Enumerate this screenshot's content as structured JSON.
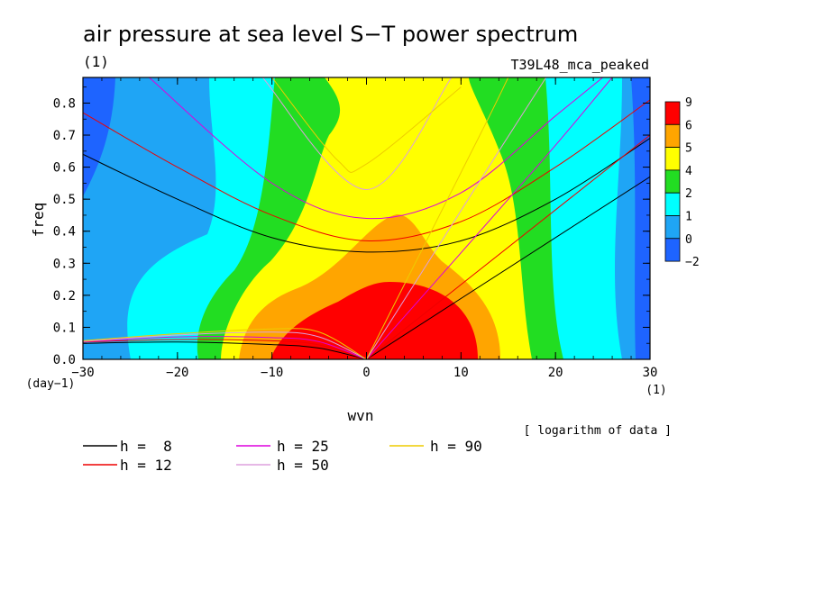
{
  "chart_data": {
    "type": "heatmap",
    "title": "air pressure at sea level S−T power spectrum",
    "units": "(1)",
    "experiment": "T39L48_mca_peaked",
    "xlabel": "wvn",
    "ylabel": "freq",
    "y_units": "(day−1)",
    "x_units": "(1)",
    "xlim": [
      -30,
      30
    ],
    "ylim": [
      0,
      0.88
    ],
    "xticks": [
      "−30",
      "−20",
      "−10",
      "0",
      "10",
      "20",
      "30"
    ],
    "yticks": [
      "0.0",
      "0.1",
      "0.2",
      "0.3",
      "0.4",
      "0.5",
      "0.6",
      "0.7",
      "0.8"
    ],
    "note": "[ logarithm of data ]",
    "colorbar": {
      "levels": [
        "9",
        "6",
        "5",
        "4",
        "2",
        "1",
        "0",
        "−2"
      ],
      "colors": [
        "#ff0000",
        "#ffa500",
        "#ffff00",
        "#22dd22",
        "#00ffff",
        "#1fa5f5",
        "#1e64ff"
      ]
    },
    "field_regions": [
      {
        "level": "−2 to 0",
        "color": "#1e64ff",
        "x": [
          -30,
          -27
        ],
        "y": [
          0.5,
          0.88
        ]
      },
      {
        "level": "0 to 1",
        "color": "#1fa5f5",
        "x": [
          -30,
          -16
        ],
        "y": [
          0,
          0.88
        ]
      },
      {
        "level": "1 to 2",
        "color": "#00ffff",
        "x": [
          -25,
          -10
        ],
        "y": [
          0,
          0.88
        ]
      },
      {
        "level": "2 to 4",
        "color": "#22dd22",
        "x": [
          -18,
          20
        ],
        "y": [
          0,
          0.88
        ]
      },
      {
        "level": "4 to 5",
        "color": "#ffff00",
        "x": [
          -15,
          17
        ],
        "y": [
          0,
          0.88
        ]
      },
      {
        "level": "5 to 6",
        "color": "#ffa500",
        "x": [
          -12,
          14
        ],
        "y": [
          0,
          0.46
        ]
      },
      {
        "level": "6 to 9",
        "color": "#ff0000",
        "x": [
          -9,
          12
        ],
        "y": [
          0,
          0.25
        ]
      }
    ],
    "legend": [
      {
        "label": "h =  8",
        "color": "#000000"
      },
      {
        "label": "h = 12",
        "color": "#ee0000"
      },
      {
        "label": "h = 25",
        "color": "#dd00dd"
      },
      {
        "label": "h = 50",
        "color": "#dda0dd"
      },
      {
        "label": "h = 90",
        "color": "#eecc00"
      }
    ],
    "dispersion_curves": [
      {
        "h": 8,
        "color": "#000000",
        "kelvin": [
          [
            0,
            0
          ],
          [
            30,
            0.57
          ]
        ],
        "rossby": [
          [
            -30,
            0.05
          ],
          [
            -20,
            0.054
          ],
          [
            -10,
            0.046
          ],
          [
            -5,
            0.035
          ],
          [
            0,
            0
          ]
        ],
        "gravity": [
          [
            -30,
            0.64
          ],
          [
            -20,
            0.5
          ],
          [
            -10,
            0.38
          ],
          [
            0,
            0.335
          ],
          [
            10,
            0.37
          ],
          [
            20,
            0.5
          ],
          [
            30,
            0.69
          ]
        ]
      },
      {
        "h": 12,
        "color": "#ee0000",
        "kelvin": [
          [
            0,
            0
          ],
          [
            30,
            0.7
          ]
        ],
        "rossby": [
          [
            -30,
            0.054
          ],
          [
            -20,
            0.062
          ],
          [
            -10,
            0.058
          ],
          [
            -5,
            0.045
          ],
          [
            0,
            0
          ]
        ],
        "gravity": [
          [
            -30,
            0.77
          ],
          [
            -20,
            0.6
          ],
          [
            -10,
            0.45
          ],
          [
            0,
            0.37
          ],
          [
            10,
            0.43
          ],
          [
            20,
            0.6
          ],
          [
            30,
            0.81
          ]
        ]
      },
      {
        "h": 25,
        "color": "#dd00dd",
        "kelvin": [
          [
            0,
            0
          ],
          [
            18,
            0.6
          ],
          [
            26,
            0.88
          ]
        ],
        "rossby": [
          [
            -30,
            0.055
          ],
          [
            -20,
            0.07
          ],
          [
            -10,
            0.068
          ],
          [
            -5,
            0.055
          ],
          [
            0,
            0
          ]
        ],
        "gravity": [
          [
            -23,
            0.88
          ],
          [
            -10,
            0.55
          ],
          [
            0,
            0.44
          ],
          [
            10,
            0.52
          ],
          [
            20,
            0.76
          ],
          [
            25,
            0.88
          ]
        ]
      },
      {
        "h": 50,
        "color": "#dda0dd",
        "kelvin": [
          [
            0,
            0
          ],
          [
            14,
            0.65
          ],
          [
            19,
            0.88
          ]
        ],
        "rossby": [
          [
            -30,
            0.056
          ],
          [
            -20,
            0.076
          ],
          [
            -10,
            0.085
          ],
          [
            -5,
            0.07
          ],
          [
            0,
            0
          ]
        ],
        "gravity": [
          [
            -11,
            0.88
          ],
          [
            0,
            0.53
          ],
          [
            9,
            0.88
          ]
        ]
      },
      {
        "h": 90,
        "color": "#eecc00",
        "kelvin": [
          [
            0,
            0
          ],
          [
            12,
            0.7
          ],
          [
            15,
            0.88
          ]
        ],
        "rossby": [
          [
            -30,
            0.058
          ],
          [
            -20,
            0.08
          ],
          [
            -10,
            0.095
          ],
          [
            -5,
            0.085
          ],
          [
            0,
            0
          ]
        ],
        "gravity": [
          [
            -10,
            0.88
          ],
          [
            -3,
            0.62
          ],
          [
            0,
            0.61
          ],
          [
            10,
            0.85
          ]
        ]
      }
    ]
  }
}
